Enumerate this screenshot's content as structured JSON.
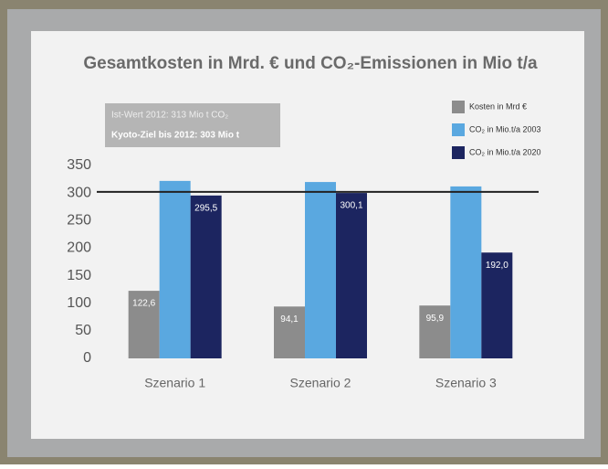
{
  "chart_data": {
    "type": "bar",
    "title": "Gesamtkosten in Mrd. € und CO₂-Emissionen in Mio t/a",
    "annotations": [
      "Ist-Wert 2012: 313 Mio t CO₂",
      "Kyoto-Ziel bis 2012: 303 Mio t"
    ],
    "categories": [
      "Szenario 1",
      "Szenario 2",
      "Szenario 3"
    ],
    "series": [
      {
        "name": "Kosten in Mrd €",
        "color": "#8c8c8c",
        "values": [
          122.6,
          94.1,
          95.9
        ],
        "value_labels": [
          "122,6",
          "94,1",
          "95,9"
        ]
      },
      {
        "name": "CO₂ in Mio.t/a 2003",
        "color": "#5aa8e0",
        "values": [
          322,
          320,
          312
        ]
      },
      {
        "name": "CO₂ in Mio.t/a 2020",
        "color": "#1c2560",
        "values": [
          295.5,
          300.1,
          192.0
        ],
        "value_labels": [
          "295,5",
          "300,1",
          "192,0"
        ]
      }
    ],
    "reference_value": 302,
    "ylim": [
      0,
      350
    ],
    "yticks": [
      0,
      50,
      100,
      150,
      200,
      250,
      300,
      350
    ],
    "legend": "top-right",
    "grid": false
  }
}
